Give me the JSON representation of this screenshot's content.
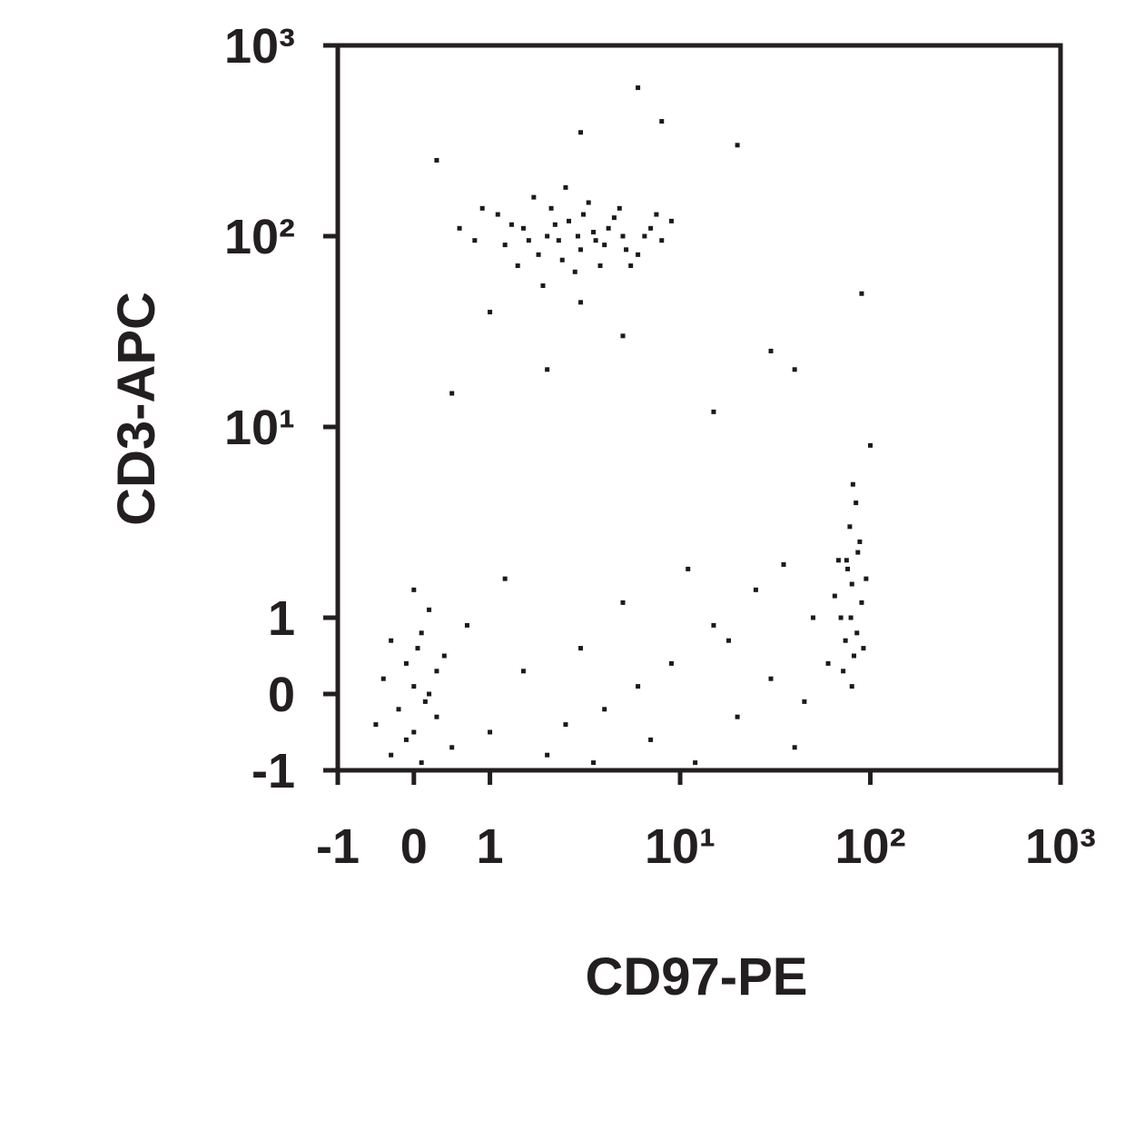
{
  "chart_data": {
    "type": "scatter",
    "x_label": "CD97-PE",
    "y_label": "CD3-APC",
    "xscale": "biexponential",
    "yscale": "biexponential",
    "color": "#1a1a1a",
    "xlim": [
      -1,
      1000
    ],
    "ylim": [
      -1,
      1000
    ],
    "xticks": [
      -1,
      0,
      1,
      {
        "value": 10,
        "label": "10¹"
      },
      {
        "value": 100,
        "label": "10²"
      },
      {
        "value": 1000,
        "label": "10³"
      }
    ],
    "yticks": [
      -1,
      0,
      1,
      {
        "value": 10,
        "label": "10¹"
      },
      {
        "value": 100,
        "label": "10²"
      },
      {
        "value": 1000,
        "label": "10³"
      }
    ],
    "x": [
      1.2,
      1.5,
      1.8,
      2.0,
      2.3,
      2.6,
      3.0,
      3.5,
      4.0,
      5.0,
      6.0,
      7.0,
      1.1,
      0.8,
      1.4,
      2.1,
      2.8,
      3.3,
      4.5,
      5.5,
      8,
      9,
      1.7,
      2.4,
      3.8,
      1.3,
      2.9,
      4.2,
      6.5,
      0.6,
      1.9,
      2.5,
      3.1,
      4.8,
      1.6,
      2.2,
      3.6,
      5.2,
      0.9,
      7.5,
      -0.3,
      0,
      0.2,
      -0.1,
      0.1,
      -0.4,
      0.3,
      0,
      -0.2,
      0.4,
      0.1,
      -0.3,
      0.2,
      0,
      -0.1,
      0.3,
      0.5,
      -0.5,
      0.05,
      0.15,
      70,
      80,
      75,
      85,
      90,
      78,
      82,
      72,
      88,
      76,
      80,
      65,
      95,
      84,
      74,
      86,
      79,
      92,
      68,
      81,
      1,
      1.5,
      2,
      3,
      4,
      5,
      7,
      9,
      12,
      15,
      20,
      25,
      30,
      40,
      50,
      0.7,
      1.2,
      2.5,
      6,
      11,
      18,
      35,
      45,
      60,
      3.5,
      0.3,
      3,
      8,
      20,
      0.5,
      2,
      5,
      15,
      30,
      40,
      90,
      100,
      6,
      1,
      3
    ],
    "values": [
      90,
      110,
      80,
      100,
      95,
      120,
      85,
      105,
      90,
      100,
      80,
      110,
      130,
      95,
      70,
      140,
      65,
      150,
      125,
      70,
      95,
      120,
      160,
      75,
      70,
      115,
      100,
      110,
      100,
      110,
      55,
      180,
      130,
      140,
      95,
      115,
      95,
      85,
      140,
      130,
      -0.8,
      -0.5,
      0,
      0.4,
      0.8,
      0.2,
      -0.3,
      0.1,
      -0.2,
      0.5,
      -0.9,
      0.7,
      1.1,
      1.4,
      -0.6,
      0.3,
      -0.7,
      -0.4,
      0.6,
      -0.1,
      1,
      1.5,
      2,
      0.8,
      1.2,
      3,
      0.5,
      0.3,
      2.5,
      1.8,
      0.1,
      1.3,
      1.6,
      4,
      0.7,
      2.2,
      1,
      0.6,
      2,
      5,
      -0.5,
      0.3,
      -0.8,
      0.6,
      -0.2,
      1.2,
      -0.6,
      0.4,
      -0.9,
      0.9,
      -0.3,
      1.4,
      0.2,
      -0.7,
      1,
      0.9,
      1.6,
      -0.4,
      0.1,
      1.8,
      0.7,
      1.9,
      -0.1,
      0.4,
      -0.9,
      250,
      350,
      400,
      300,
      15,
      20,
      30,
      12,
      25,
      20,
      50,
      8,
      600,
      40,
      45
    ]
  }
}
